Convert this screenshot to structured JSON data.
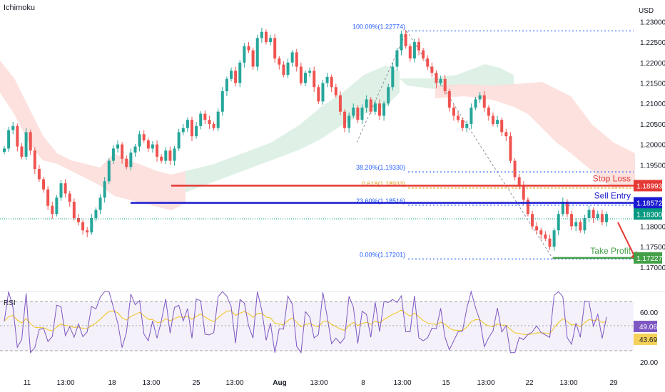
{
  "chart_data": {
    "type": "candlestick",
    "indicator_label": "Ichimoku",
    "currency": "USD",
    "price_axis": {
      "ticks": [
        "1.23000",
        "1.22500",
        "1.22000",
        "1.21500",
        "1.21000",
        "1.20500",
        "1.20000",
        "1.19500",
        "1.18000",
        "1.17500",
        "1.17000"
      ],
      "tick_values": [
        1.23,
        1.225,
        1.22,
        1.215,
        1.21,
        1.205,
        1.2,
        1.195,
        1.18,
        1.175,
        1.17
      ],
      "ylim": [
        1.1665,
        1.2325
      ]
    },
    "time_axis": {
      "ticks": [
        "11",
        "13:00",
        "18",
        "13:00",
        "25",
        "13:00",
        "Aug",
        "13:00",
        "8",
        "13:00",
        "15",
        "13:00",
        "22",
        "13:00",
        "29"
      ],
      "bold_ticks": [
        "Aug"
      ]
    },
    "candles_close": [
      1.199,
      1.2035,
      1.2045,
      1.1995,
      1.197,
      1.203,
      1.1985,
      1.194,
      1.1915,
      1.189,
      1.185,
      1.183,
      1.187,
      1.1905,
      1.188,
      1.186,
      1.182,
      1.181,
      1.179,
      1.1785,
      1.182,
      1.184,
      1.187,
      1.191,
      1.196,
      1.199,
      1.2,
      1.1965,
      1.1945,
      1.198,
      1.1995,
      1.2025,
      1.201,
      1.199,
      1.2,
      1.197,
      1.196,
      1.1985,
      1.196,
      1.199,
      1.203,
      1.204,
      1.206,
      1.202,
      1.2045,
      1.2075,
      1.206,
      1.205,
      1.204,
      1.208,
      1.213,
      1.216,
      1.218,
      1.215,
      1.22,
      1.224,
      1.223,
      1.219,
      1.226,
      1.2275,
      1.225,
      1.226,
      1.221,
      1.2195,
      1.217,
      1.22,
      1.2225,
      1.219,
      1.215,
      1.2175,
      1.218,
      1.214,
      1.2105,
      1.215,
      1.2165,
      1.214,
      1.212,
      1.208,
      1.204,
      1.207,
      1.209,
      1.206,
      1.209,
      1.211,
      1.208,
      1.21,
      1.207,
      1.21,
      1.214,
      1.219,
      1.223,
      1.227,
      1.224,
      1.221,
      1.225,
      1.223,
      1.221,
      1.219,
      1.2175,
      1.215,
      1.216,
      1.213,
      1.209,
      1.207,
      1.206,
      1.204,
      1.205,
      1.209,
      1.211,
      1.212,
      1.209,
      1.207,
      1.205,
      1.206,
      1.203,
      1.202,
      1.196,
      1.192,
      1.19,
      1.1865,
      1.183,
      1.18,
      1.179,
      1.178,
      1.177,
      1.175,
      1.179,
      1.183,
      1.186,
      1.183,
      1.18,
      1.181,
      1.179,
      1.182,
      1.184,
      1.182,
      1.183,
      1.181,
      1.183
    ],
    "fibonacci": [
      {
        "label": "100.00%(1.22774)",
        "value": 1.22774
      },
      {
        "label": "38.20%(1.19330)",
        "value": 1.1933
      },
      {
        "label": "0.618(1.18933)",
        "value": 1.18933
      },
      {
        "label": "23.60%(1.18516)",
        "value": 1.18516
      },
      {
        "label": "0.00%(1.17201)",
        "value": 1.17201
      }
    ],
    "trade_levels": [
      {
        "name": "Stop Loss",
        "value": 1.18993,
        "tag": "1.18993",
        "color": "#e53935"
      },
      {
        "name": "Sell Entry",
        "value": 1.18572,
        "tag": "1.18572",
        "color": "#1a1ad1"
      },
      {
        "name": "Take Profit",
        "value": 1.17227,
        "tag": "1.17227",
        "color": "#43a047"
      }
    ],
    "current_price": {
      "value": 1.183,
      "tag": "1.18300",
      "color": "#089981"
    },
    "rsi": {
      "label": "RSI",
      "ticks": [
        "60.00",
        "20.00"
      ],
      "rsi_value": "49.06",
      "ma_value": "43.69",
      "rsi_color": "#7e57c2",
      "ma_color": "#f0c419"
    },
    "colors": {
      "up": "#26a69a",
      "down": "#ef5350",
      "cloud_red": "#f8d4d0",
      "cloud_green": "#d9eee0",
      "fib": "#2962ff",
      "fib_gold": "#e6a52a"
    }
  }
}
